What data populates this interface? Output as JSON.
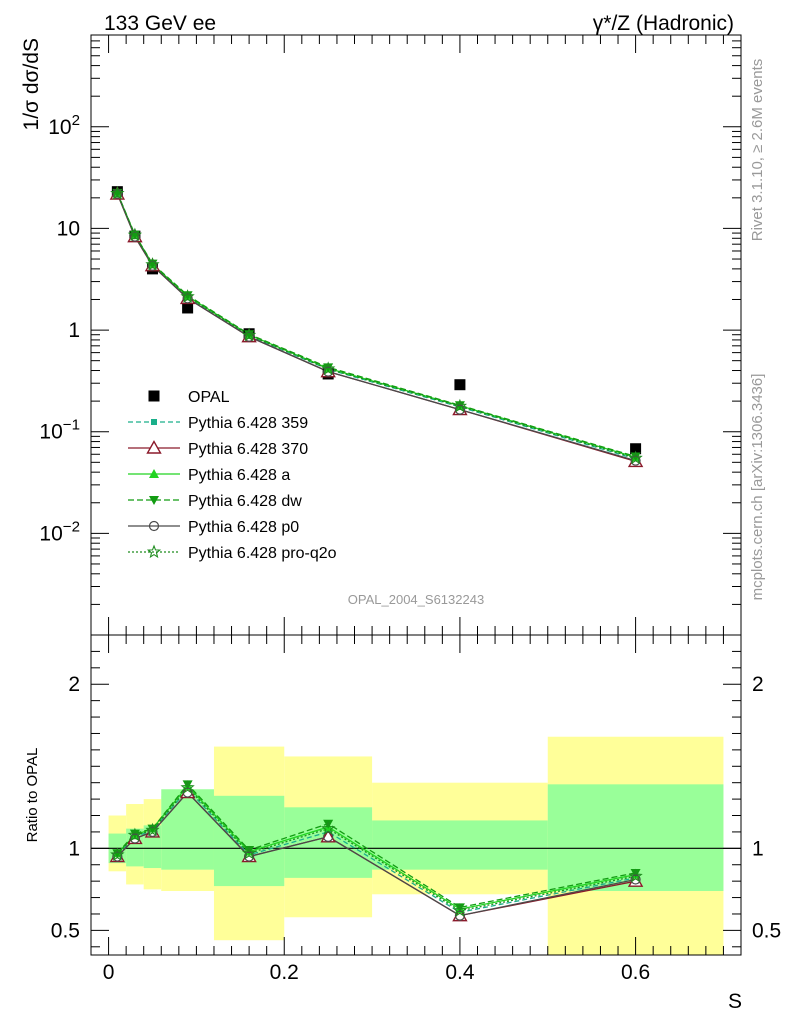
{
  "header": {
    "energy_label": "133 GeV ee",
    "process_label": "γ*/Z (Hadronic)"
  },
  "side_labels": {
    "rivet": "Rivet 3.1.10, ≥ 2.6M events",
    "mcplots": "mcplots.cern.ch [arXiv:1306.3436]"
  },
  "watermark": "OPAL_2004_S6132243",
  "chart_data": [
    {
      "type": "scatter",
      "panel": "main",
      "ylabel": "1/σ dσ/dS",
      "yscale": "log",
      "ylim": [
        0.001,
        800
      ],
      "xlim": [
        -0.02,
        0.72
      ],
      "legend_position": "bottom-left",
      "y_tick_labels": [
        "10^-2",
        "10^-1",
        "1",
        "10",
        "10^2"
      ],
      "x": [
        0.01,
        0.03,
        0.05,
        0.09,
        0.16,
        0.25,
        0.4,
        0.6
      ],
      "series": [
        {
          "name": "OPAL",
          "color": "#000000",
          "marker": "square",
          "values": [
            23.0,
            8.4,
            4.0,
            1.65,
            0.92,
            0.37,
            0.29,
            0.068
          ]
        },
        {
          "name": "Pythia 6.428 359",
          "color": "#1aaf8a",
          "dash": "5,3",
          "marker": "small-square",
          "values": [
            22.0,
            8.5,
            4.4,
            2.1,
            0.88,
            0.41,
            0.175,
            0.054
          ]
        },
        {
          "name": "Pythia 6.428 370",
          "color": "#8b1a2b",
          "dash": "",
          "marker": "open-triangle",
          "values": [
            21.8,
            8.3,
            4.3,
            2.05,
            0.86,
            0.39,
            0.165,
            0.051
          ]
        },
        {
          "name": "Pythia 6.428 a",
          "color": "#22d422",
          "dash": "",
          "marker": "triangle",
          "values": [
            22.2,
            8.6,
            4.45,
            2.15,
            0.9,
            0.42,
            0.18,
            0.056
          ]
        },
        {
          "name": "Pythia 6.428 dw",
          "color": "#129c12",
          "dash": "6,3",
          "marker": "triangle-down",
          "values": [
            22.4,
            8.7,
            4.5,
            2.2,
            0.91,
            0.43,
            0.182,
            0.057
          ]
        },
        {
          "name": "Pythia 6.428 p0",
          "color": "#4a4a4a",
          "dash": "",
          "marker": "open-circle",
          "values": [
            21.9,
            8.3,
            4.3,
            2.05,
            0.86,
            0.39,
            0.165,
            0.052
          ]
        },
        {
          "name": "Pythia 6.428 pro-q2o",
          "color": "#1e8c1e",
          "dash": "2,2",
          "marker": "open-star",
          "values": [
            22.1,
            8.6,
            4.4,
            2.13,
            0.89,
            0.415,
            0.178,
            0.055
          ]
        }
      ]
    },
    {
      "type": "scatter",
      "panel": "ratio",
      "ylabel": "Ratio to OPAL",
      "xlabel": "S",
      "ylim": [
        0.35,
        2.3
      ],
      "xlim": [
        -0.02,
        0.72
      ],
      "y_tick_labels": [
        "0.5",
        "1",
        "2"
      ],
      "x_tick_labels": [
        "0",
        "0.2",
        "0.4",
        "0.6"
      ],
      "reference_line": 1.0,
      "bands": [
        {
          "x_range": [
            0.0,
            0.02
          ],
          "inner": [
            0.91,
            1.09
          ],
          "outer": [
            0.86,
            1.2
          ]
        },
        {
          "x_range": [
            0.02,
            0.04
          ],
          "inner": [
            0.89,
            1.12
          ],
          "outer": [
            0.78,
            1.27
          ]
        },
        {
          "x_range": [
            0.04,
            0.06
          ],
          "inner": [
            0.88,
            1.14
          ],
          "outer": [
            0.75,
            1.3
          ]
        },
        {
          "x_range": [
            0.06,
            0.12
          ],
          "inner": [
            0.87,
            1.36
          ],
          "outer": [
            0.74,
            1.32
          ]
        },
        {
          "x_range": [
            0.12,
            0.2
          ],
          "inner": [
            0.77,
            1.32
          ],
          "outer": [
            0.44,
            1.62
          ]
        },
        {
          "x_range": [
            0.2,
            0.3
          ],
          "inner": [
            0.82,
            1.25
          ],
          "outer": [
            0.58,
            1.56
          ]
        },
        {
          "x_range": [
            0.3,
            0.5
          ],
          "inner": [
            0.87,
            1.17
          ],
          "outer": [
            0.72,
            1.4
          ]
        },
        {
          "x_range": [
            0.5,
            0.7
          ],
          "inner": [
            0.74,
            1.39
          ],
          "outer": [
            0.3,
            1.68
          ]
        }
      ],
      "x": [
        0.01,
        0.03,
        0.05,
        0.09,
        0.16,
        0.25,
        0.4,
        0.6
      ],
      "series": [
        {
          "name": "Pythia 6.428 359",
          "color": "#1aaf8a",
          "dash": "5,3",
          "marker": "small-square",
          "values": [
            0.96,
            1.07,
            1.11,
            1.36,
            0.96,
            1.1,
            0.61,
            0.82
          ]
        },
        {
          "name": "Pythia 6.428 370",
          "color": "#8b1a2b",
          "dash": "",
          "marker": "open-triangle",
          "values": [
            0.95,
            1.06,
            1.1,
            1.34,
            0.95,
            1.07,
            0.59,
            0.8
          ]
        },
        {
          "name": "Pythia 6.428 a",
          "color": "#22d422",
          "dash": "",
          "marker": "triangle",
          "values": [
            0.97,
            1.08,
            1.12,
            1.38,
            0.98,
            1.13,
            0.63,
            0.84
          ]
        },
        {
          "name": "Pythia 6.428 dw",
          "color": "#129c12",
          "dash": "6,3",
          "marker": "triangle-down",
          "values": [
            0.97,
            1.09,
            1.12,
            1.39,
            0.99,
            1.15,
            0.64,
            0.85
          ]
        },
        {
          "name": "Pythia 6.428 p0",
          "color": "#4a4a4a",
          "dash": "",
          "marker": "open-circle",
          "values": [
            0.95,
            1.06,
            1.1,
            1.34,
            0.95,
            1.07,
            0.59,
            0.81
          ]
        },
        {
          "name": "Pythia 6.428 pro-q2o",
          "color": "#1e8c1e",
          "dash": "2,2",
          "marker": "open-star",
          "values": [
            0.96,
            1.08,
            1.11,
            1.37,
            0.97,
            1.12,
            0.62,
            0.83
          ]
        }
      ]
    }
  ]
}
